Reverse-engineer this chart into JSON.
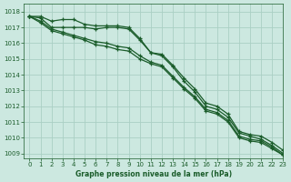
{
  "title": "Graphe pression niveau de la mer (hPa)",
  "bg_color": "#cce8e0",
  "grid_color": "#aacfc4",
  "line_color": "#1a5c2a",
  "xlim": [
    -0.5,
    23
  ],
  "ylim": [
    1008.7,
    1018.5
  ],
  "yticks": [
    1009,
    1010,
    1011,
    1012,
    1013,
    1014,
    1015,
    1016,
    1017,
    1018
  ],
  "xticks": [
    0,
    1,
    2,
    3,
    4,
    5,
    6,
    7,
    8,
    9,
    10,
    11,
    12,
    13,
    14,
    15,
    16,
    17,
    18,
    19,
    20,
    21,
    22,
    23
  ],
  "series": [
    [
      1017.7,
      1017.7,
      1017.4,
      1017.5,
      1017.5,
      1017.2,
      1017.1,
      1017.1,
      1017.1,
      1017.0,
      1016.3,
      1015.4,
      1015.3,
      1014.6,
      1013.8,
      1013.1,
      1012.2,
      1012.0,
      1011.5,
      1010.4,
      1010.2,
      1010.1,
      1009.7,
      1009.2
    ],
    [
      1017.7,
      1017.6,
      1017.0,
      1017.0,
      1017.0,
      1017.0,
      1016.9,
      1017.0,
      1017.0,
      1016.9,
      1016.2,
      1015.4,
      1015.2,
      1014.5,
      1013.6,
      1012.9,
      1012.0,
      1011.8,
      1011.3,
      1010.3,
      1010.1,
      1009.9,
      1009.5,
      1009.0
    ],
    [
      1017.7,
      1017.4,
      1016.9,
      1016.7,
      1016.5,
      1016.3,
      1016.1,
      1016.0,
      1015.8,
      1015.7,
      1015.2,
      1014.8,
      1014.6,
      1013.9,
      1013.2,
      1012.6,
      1011.8,
      1011.6,
      1011.1,
      1010.1,
      1009.9,
      1009.8,
      1009.4,
      1008.9
    ],
    [
      1017.7,
      1017.3,
      1016.8,
      1016.6,
      1016.4,
      1016.2,
      1015.9,
      1015.8,
      1015.6,
      1015.5,
      1015.0,
      1014.7,
      1014.5,
      1013.8,
      1013.1,
      1012.5,
      1011.7,
      1011.5,
      1011.0,
      1010.0,
      1009.8,
      1009.7,
      1009.3,
      1008.9
    ]
  ]
}
